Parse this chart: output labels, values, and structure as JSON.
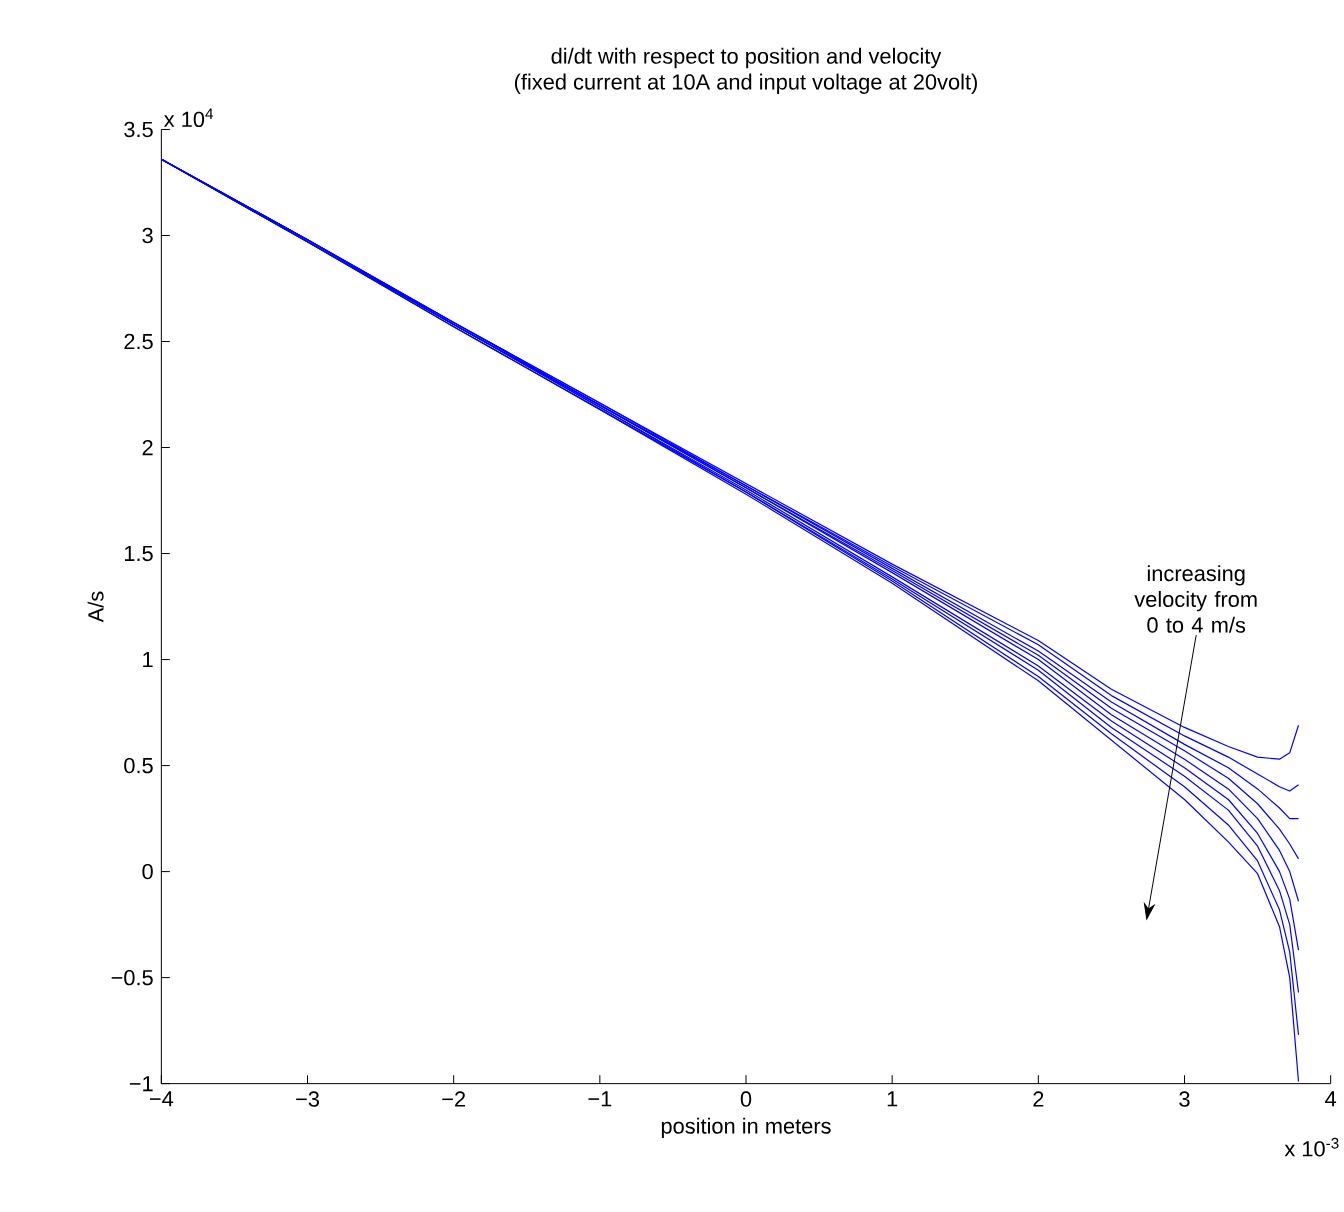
{
  "chart_data": {
    "type": "line",
    "title": "di/dt with respect to position and velocity",
    "subtitle": "(fixed current at 10A and input voltage at 20volt)",
    "xlabel": "position in meters",
    "ylabel": "A/s",
    "x": [
      -4,
      -3,
      -2,
      -1,
      0,
      1,
      2,
      2.5,
      3,
      3.3,
      3.5,
      3.65,
      3.72,
      3.78
    ],
    "series": [
      {
        "color": "#0000ff",
        "values": [
          3.36,
          2.98,
          2.59,
          2.21,
          1.83,
          1.45,
          1.09,
          0.86,
          0.68,
          0.59,
          0.54,
          0.53,
          0.56,
          0.69
        ]
      },
      {
        "color": "#0000ff",
        "values": [
          3.36,
          2.98,
          2.59,
          2.21,
          1.82,
          1.44,
          1.07,
          0.83,
          0.64,
          0.54,
          0.46,
          0.4,
          0.38,
          0.41
        ]
      },
      {
        "color": "#0000ff",
        "values": [
          3.36,
          2.98,
          2.59,
          2.2,
          1.82,
          1.43,
          1.04,
          0.8,
          0.6,
          0.49,
          0.39,
          0.3,
          0.25,
          0.25
        ]
      },
      {
        "color": "#0000ff",
        "values": [
          3.36,
          2.98,
          2.58,
          2.2,
          1.81,
          1.42,
          1.02,
          0.77,
          0.57,
          0.44,
          0.32,
          0.2,
          0.13,
          0.06
        ]
      },
      {
        "color": "#0000ff",
        "values": [
          3.36,
          2.98,
          2.58,
          2.2,
          1.81,
          1.41,
          1.0,
          0.74,
          0.53,
          0.39,
          0.25,
          0.1,
          0.0,
          -0.14
        ]
      },
      {
        "color": "#0000ff",
        "values": [
          3.36,
          2.97,
          2.58,
          2.19,
          1.8,
          1.39,
          0.97,
          0.71,
          0.49,
          0.34,
          0.18,
          0.0,
          -0.13,
          -0.37
        ]
      },
      {
        "color": "#0000ff",
        "values": [
          3.36,
          2.97,
          2.58,
          2.19,
          1.79,
          1.38,
          0.95,
          0.68,
          0.45,
          0.29,
          0.12,
          -0.09,
          -0.25,
          -0.57
        ]
      },
      {
        "color": "#0000ff",
        "values": [
          3.36,
          2.97,
          2.57,
          2.18,
          1.79,
          1.37,
          0.92,
          0.65,
          0.4,
          0.22,
          0.05,
          -0.18,
          -0.38,
          -0.77
        ]
      },
      {
        "color": "#0000ff",
        "values": [
          3.36,
          2.97,
          2.57,
          2.18,
          1.78,
          1.36,
          0.9,
          0.62,
          0.34,
          0.14,
          -0.01,
          -0.26,
          -0.5,
          -0.99
        ]
      }
    ],
    "xlim": [
      -4,
      4
    ],
    "xticks": [
      {
        "value": -4,
        "label": "−4"
      },
      {
        "value": -3,
        "label": "−3"
      },
      {
        "value": -2,
        "label": "−2"
      },
      {
        "value": -1,
        "label": "−1"
      },
      0,
      1,
      2,
      3,
      4
    ],
    "ylim": [
      -1,
      3.5
    ],
    "yticks": [
      {
        "value": -1,
        "label": "−1"
      },
      {
        "value": -0.5,
        "label": "−0.5"
      },
      0,
      0.5,
      1,
      1.5,
      2,
      2.5,
      3,
      3.5
    ],
    "annotations": [
      "x 10$^{4}$",
      "x 10$^{-3}$",
      "increasing velocity from 0 to 4 m/s"
    ]
  }
}
